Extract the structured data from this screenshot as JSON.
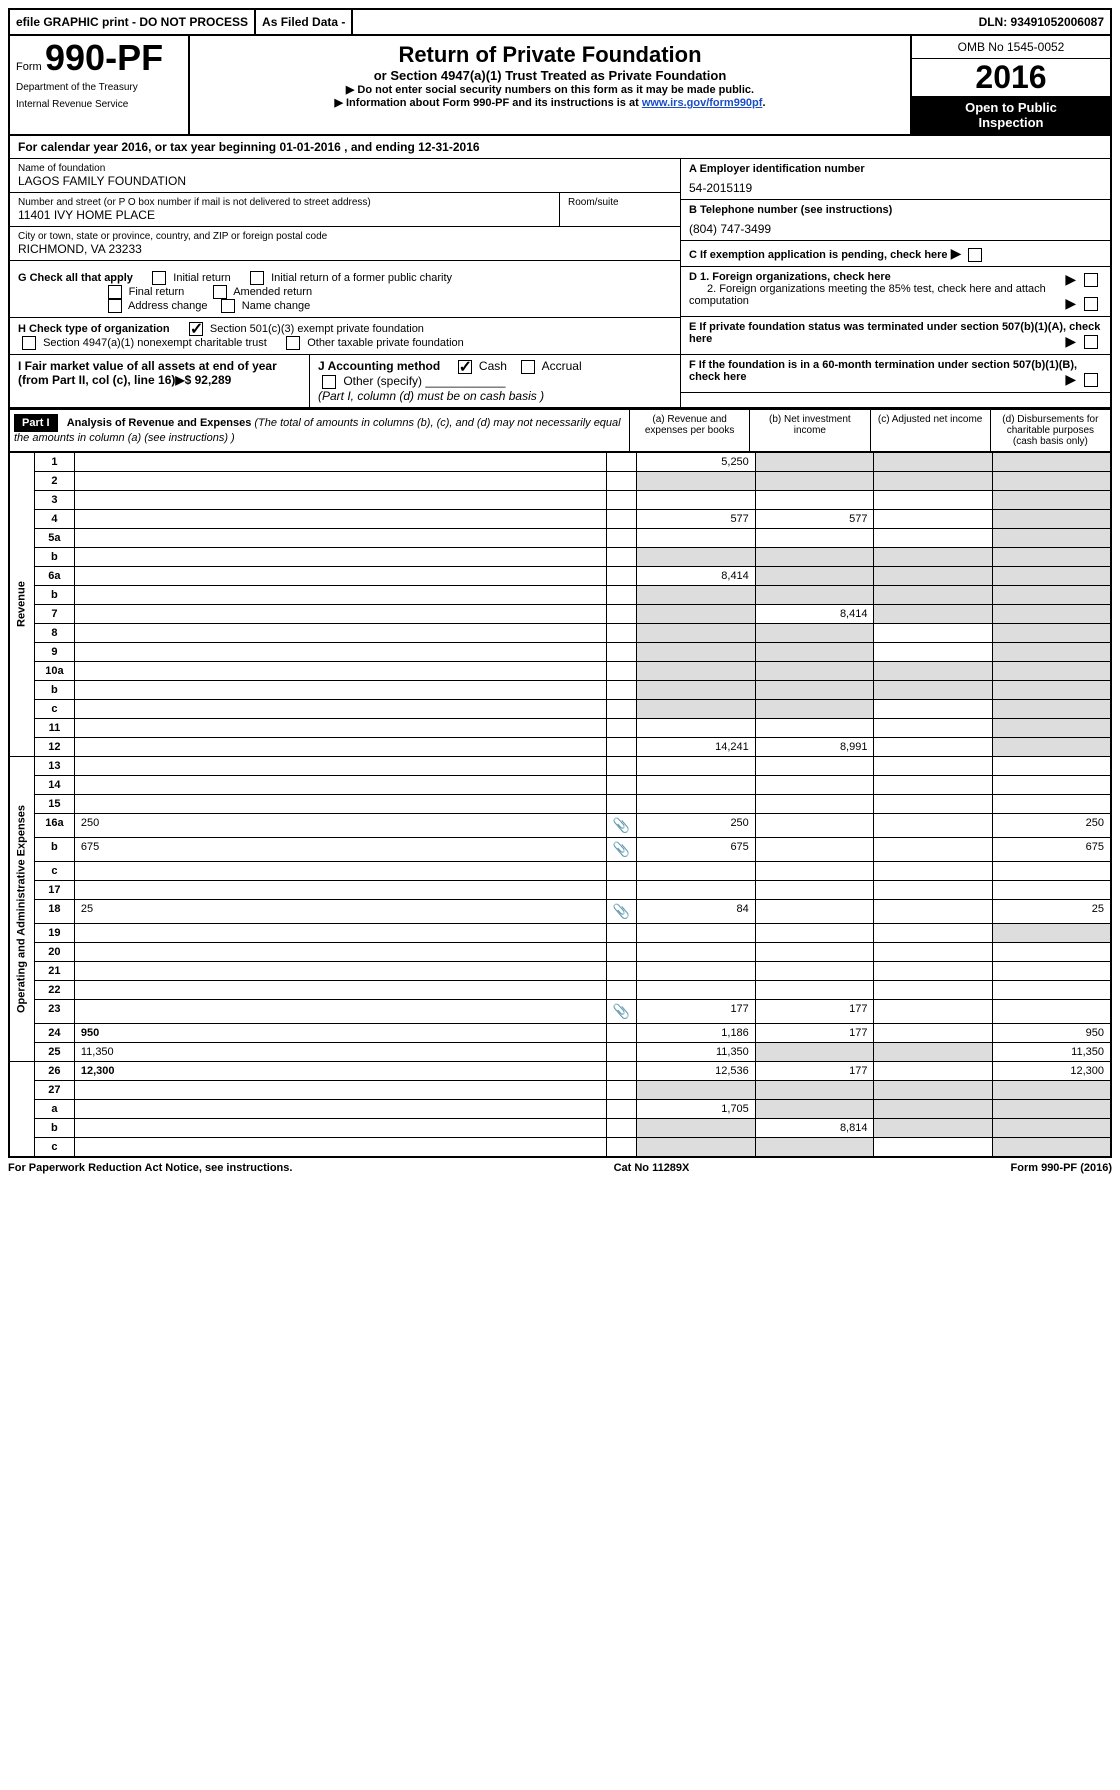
{
  "topbar": {
    "efile": "efile GRAPHIC print - DO NOT PROCESS",
    "asfiled": "As Filed Data -",
    "dln": "DLN: 93491052006087"
  },
  "header": {
    "form_prefix": "Form",
    "form_no": "990-PF",
    "dept1": "Department of the Treasury",
    "dept2": "Internal Revenue Service",
    "title": "Return of Private Foundation",
    "subtitle": "or Section 4947(a)(1) Trust Treated as Private Foundation",
    "note1": "▶ Do not enter social security numbers on this form as it may be made public.",
    "note2_a": "▶ Information about Form 990-PF and its instructions is at ",
    "note2_link": "www.irs.gov/form990pf",
    "note2_b": ".",
    "omb": "OMB No 1545-0052",
    "year": "2016",
    "open1": "Open to Public",
    "open2": "Inspection"
  },
  "cal_year": "For calendar year 2016, or tax year beginning 01-01-2016          , and ending 12-31-2016",
  "name_label": "Name of foundation",
  "name_val": "LAGOS FAMILY FOUNDATION",
  "addr_label": "Number and street (or P O  box number if mail is not delivered to street address)",
  "addr_val": "11401 IVY HOME PLACE",
  "room_label": "Room/suite",
  "city_label": "City or town, state or province, country, and ZIP or foreign postal code",
  "city_val": "RICHMOND, VA  23233",
  "ein_label": "A Employer identification number",
  "ein_val": "54-2015119",
  "tel_label": "B Telephone number (see instructions)",
  "tel_val": "(804) 747-3499",
  "c_label": "C If exemption application is pending, check here",
  "g_label": "G Check all that apply",
  "g_opts": {
    "initial": "Initial return",
    "initial_former": "Initial return of a former public charity",
    "final": "Final return",
    "amended": "Amended return",
    "addr_change": "Address change",
    "name_change": "Name change"
  },
  "h_label": "H Check type of organization",
  "h_opt1": "Section 501(c)(3) exempt private foundation",
  "h_opt2": "Section 4947(a)(1) nonexempt charitable trust",
  "h_opt3": "Other taxable private foundation",
  "d1": "D 1. Foreign organizations, check here",
  "d2": "2. Foreign organizations meeting the 85% test, check here and attach computation",
  "e_label": "E  If private foundation status was terminated under section 507(b)(1)(A), check here",
  "i_label": "I Fair market value of all assets at end of year (from Part II, col  (c), line 16)▶$  92,289",
  "j_label": "J Accounting method",
  "j_cash": "Cash",
  "j_accrual": "Accrual",
  "j_other": "Other (specify)",
  "j_note": "(Part I, column (d) must be on cash basis )",
  "f_label": "F  If the foundation is in a 60-month termination under section 507(b)(1)(B), check here",
  "part1": {
    "label": "Part I",
    "title": "Analysis of Revenue and Expenses",
    "title_note": " (The total of amounts in columns (b), (c), and (d) may not necessarily equal the amounts in column (a) (see instructions) )",
    "col_a": "(a)   Revenue and expenses per books",
    "col_b": "(b) Net investment income",
    "col_c": "(c) Adjusted net income",
    "col_d": "(d) Disbursements for charitable purposes (cash basis only)"
  },
  "revenue_label": "Revenue",
  "opex_label": "Operating and Administrative Expenses",
  "rows": [
    {
      "n": "1",
      "d": "",
      "a": "5,250",
      "b": "",
      "c": "",
      "b_sh": true,
      "c_sh": true,
      "d_sh": true
    },
    {
      "n": "2",
      "d": "",
      "a": "",
      "b": "",
      "c": "",
      "a_sh": true,
      "b_sh": true,
      "c_sh": true,
      "d_sh": true
    },
    {
      "n": "3",
      "d": "",
      "a": "",
      "b": "",
      "c": "",
      "d_sh": true
    },
    {
      "n": "4",
      "d": "",
      "a": "577",
      "b": "577",
      "c": "",
      "d_sh": true
    },
    {
      "n": "5a",
      "d": "",
      "a": "",
      "b": "",
      "c": "",
      "d_sh": true
    },
    {
      "n": "b",
      "d": "",
      "a": "",
      "b": "",
      "c": "",
      "a_sh": true,
      "b_sh": true,
      "c_sh": true,
      "d_sh": true
    },
    {
      "n": "6a",
      "d": "",
      "a": "8,414",
      "b": "",
      "c": "",
      "b_sh": true,
      "c_sh": true,
      "d_sh": true
    },
    {
      "n": "b",
      "d": "",
      "a": "",
      "b": "",
      "c": "",
      "a_sh": true,
      "b_sh": true,
      "c_sh": true,
      "d_sh": true
    },
    {
      "n": "7",
      "d": "",
      "a": "",
      "b": "8,414",
      "c": "",
      "a_sh": true,
      "c_sh": true,
      "d_sh": true
    },
    {
      "n": "8",
      "d": "",
      "a": "",
      "b": "",
      "c": "",
      "a_sh": true,
      "b_sh": true,
      "d_sh": true
    },
    {
      "n": "9",
      "d": "",
      "a": "",
      "b": "",
      "c": "",
      "a_sh": true,
      "b_sh": true,
      "d_sh": true
    },
    {
      "n": "10a",
      "d": "",
      "a": "",
      "b": "",
      "c": "",
      "a_sh": true,
      "b_sh": true,
      "c_sh": true,
      "d_sh": true
    },
    {
      "n": "b",
      "d": "",
      "a": "",
      "b": "",
      "c": "",
      "a_sh": true,
      "b_sh": true,
      "c_sh": true,
      "d_sh": true
    },
    {
      "n": "c",
      "d": "",
      "a": "",
      "b": "",
      "c": "",
      "a_sh": true,
      "b_sh": true,
      "d_sh": true
    },
    {
      "n": "11",
      "d": "",
      "a": "",
      "b": "",
      "c": "",
      "d_sh": true
    },
    {
      "n": "12",
      "d": "",
      "a": "14,241",
      "b": "8,991",
      "c": "",
      "d_sh": true,
      "bold": true
    },
    {
      "n": "13",
      "d": "",
      "a": "",
      "b": "",
      "c": ""
    },
    {
      "n": "14",
      "d": "",
      "a": "",
      "b": "",
      "c": ""
    },
    {
      "n": "15",
      "d": "",
      "a": "",
      "b": "",
      "c": ""
    },
    {
      "n": "16a",
      "d": "250",
      "a": "250",
      "b": "",
      "c": "",
      "att": true
    },
    {
      "n": "b",
      "d": "675",
      "a": "675",
      "b": "",
      "c": "",
      "att": true
    },
    {
      "n": "c",
      "d": "",
      "a": "",
      "b": "",
      "c": ""
    },
    {
      "n": "17",
      "d": "",
      "a": "",
      "b": "",
      "c": ""
    },
    {
      "n": "18",
      "d": "25",
      "a": "84",
      "b": "",
      "c": "",
      "att": true
    },
    {
      "n": "19",
      "d": "",
      "a": "",
      "b": "",
      "c": "",
      "d_sh": true
    },
    {
      "n": "20",
      "d": "",
      "a": "",
      "b": "",
      "c": ""
    },
    {
      "n": "21",
      "d": "",
      "a": "",
      "b": "",
      "c": ""
    },
    {
      "n": "22",
      "d": "",
      "a": "",
      "b": "",
      "c": ""
    },
    {
      "n": "23",
      "d": "",
      "a": "177",
      "b": "177",
      "c": "",
      "att": true
    },
    {
      "n": "24",
      "d": "950",
      "a": "1,186",
      "b": "177",
      "c": "",
      "bold": true
    },
    {
      "n": "25",
      "d": "11,350",
      "a": "11,350",
      "b": "",
      "c": "",
      "b_sh": true,
      "c_sh": true
    },
    {
      "n": "26",
      "d": "12,300",
      "a": "12,536",
      "b": "177",
      "c": "",
      "bold": true
    },
    {
      "n": "27",
      "d": "",
      "a": "",
      "b": "",
      "c": "",
      "a_sh": true,
      "b_sh": true,
      "c_sh": true,
      "d_sh": true
    },
    {
      "n": "a",
      "d": "",
      "a": "1,705",
      "b": "",
      "c": "",
      "b_sh": true,
      "c_sh": true,
      "d_sh": true,
      "bold": true
    },
    {
      "n": "b",
      "d": "",
      "a": "",
      "b": "8,814",
      "c": "",
      "a_sh": true,
      "c_sh": true,
      "d_sh": true,
      "bold": true
    },
    {
      "n": "c",
      "d": "",
      "a": "",
      "b": "",
      "c": "",
      "a_sh": true,
      "b_sh": true,
      "d_sh": true,
      "bold": true
    }
  ],
  "footer": {
    "left": "For Paperwork Reduction Act Notice, see instructions.",
    "mid": "Cat  No  11289X",
    "right": "Form 990-PF (2016)"
  }
}
